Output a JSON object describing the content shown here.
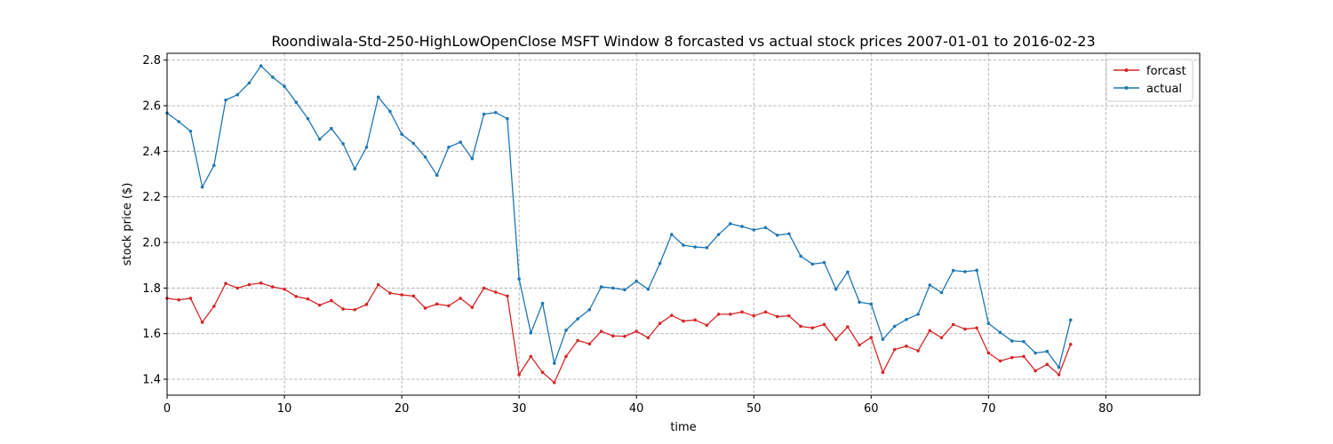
{
  "chart_data": {
    "type": "line",
    "title": "Roondiwala-Std-250-HighLowOpenClose MSFT Window 8 forcasted vs actual stock prices 2007-01-01 to 2016-02-23",
    "xlabel": "time",
    "ylabel": "stock price ($)",
    "xlim": [
      0,
      88
    ],
    "ylim": [
      1.33,
      2.83
    ],
    "xticks": [
      0,
      10,
      20,
      30,
      40,
      50,
      60,
      70,
      80
    ],
    "yticks": [
      1.4,
      1.6,
      1.8,
      2.0,
      2.2,
      2.4,
      2.6,
      2.8
    ],
    "grid": true,
    "legend_position": "top-right",
    "x": [
      0,
      1,
      2,
      3,
      4,
      5,
      6,
      7,
      8,
      9,
      10,
      11,
      12,
      13,
      14,
      15,
      16,
      17,
      18,
      19,
      20,
      21,
      22,
      23,
      24,
      25,
      26,
      27,
      28,
      29,
      30,
      31,
      32,
      33,
      34,
      35,
      36,
      37,
      38,
      39,
      40,
      41,
      42,
      43,
      44,
      45,
      46,
      47,
      48,
      49,
      50,
      51,
      52,
      53,
      54,
      55,
      56,
      57,
      58,
      59,
      60,
      61,
      62,
      63,
      64,
      65,
      66,
      67,
      68,
      69,
      70,
      71,
      72,
      73,
      74,
      75,
      76,
      77
    ],
    "series": [
      {
        "name": "forcast",
        "color": "#d62728",
        "values": [
          1.755,
          1.748,
          1.755,
          1.65,
          1.72,
          1.82,
          1.8,
          1.815,
          1.822,
          1.805,
          1.795,
          1.763,
          1.752,
          1.725,
          1.745,
          1.708,
          1.705,
          1.728,
          1.815,
          1.778,
          1.77,
          1.765,
          1.712,
          1.73,
          1.722,
          1.755,
          1.715,
          1.8,
          1.782,
          1.765,
          1.42,
          1.5,
          1.43,
          1.385,
          1.5,
          1.57,
          1.555,
          1.61,
          1.59,
          1.588,
          1.61,
          1.582,
          1.645,
          1.68,
          1.655,
          1.66,
          1.637,
          1.685,
          1.685,
          1.695,
          1.678,
          1.695,
          1.675,
          1.678,
          1.632,
          1.625,
          1.64,
          1.575,
          1.63,
          1.55,
          1.583,
          1.43,
          1.53,
          1.545,
          1.525,
          1.613,
          1.582,
          1.64,
          1.62,
          1.625,
          1.515,
          1.48,
          1.495,
          1.5,
          1.437,
          1.465,
          1.42,
          1.553
        ]
      },
      {
        "name": "actual",
        "color": "#1f77b4",
        "values": [
          2.568,
          2.53,
          2.488,
          2.243,
          2.338,
          2.625,
          2.648,
          2.7,
          2.775,
          2.725,
          2.685,
          2.615,
          2.543,
          2.453,
          2.5,
          2.433,
          2.323,
          2.418,
          2.638,
          2.575,
          2.475,
          2.435,
          2.375,
          2.295,
          2.418,
          2.44,
          2.368,
          2.563,
          2.57,
          2.543,
          1.84,
          1.603,
          1.733,
          1.47,
          1.615,
          1.665,
          1.705,
          1.805,
          1.8,
          1.792,
          1.83,
          1.795,
          1.908,
          2.035,
          1.988,
          1.98,
          1.977,
          2.035,
          2.082,
          2.07,
          2.055,
          2.065,
          2.032,
          2.038,
          1.94,
          1.905,
          1.912,
          1.795,
          1.87,
          1.738,
          1.73,
          1.575,
          1.632,
          1.662,
          1.685,
          1.813,
          1.78,
          1.877,
          1.872,
          1.878,
          1.645,
          1.605,
          1.568,
          1.565,
          1.515,
          1.522,
          1.452,
          1.66
        ]
      }
    ]
  }
}
